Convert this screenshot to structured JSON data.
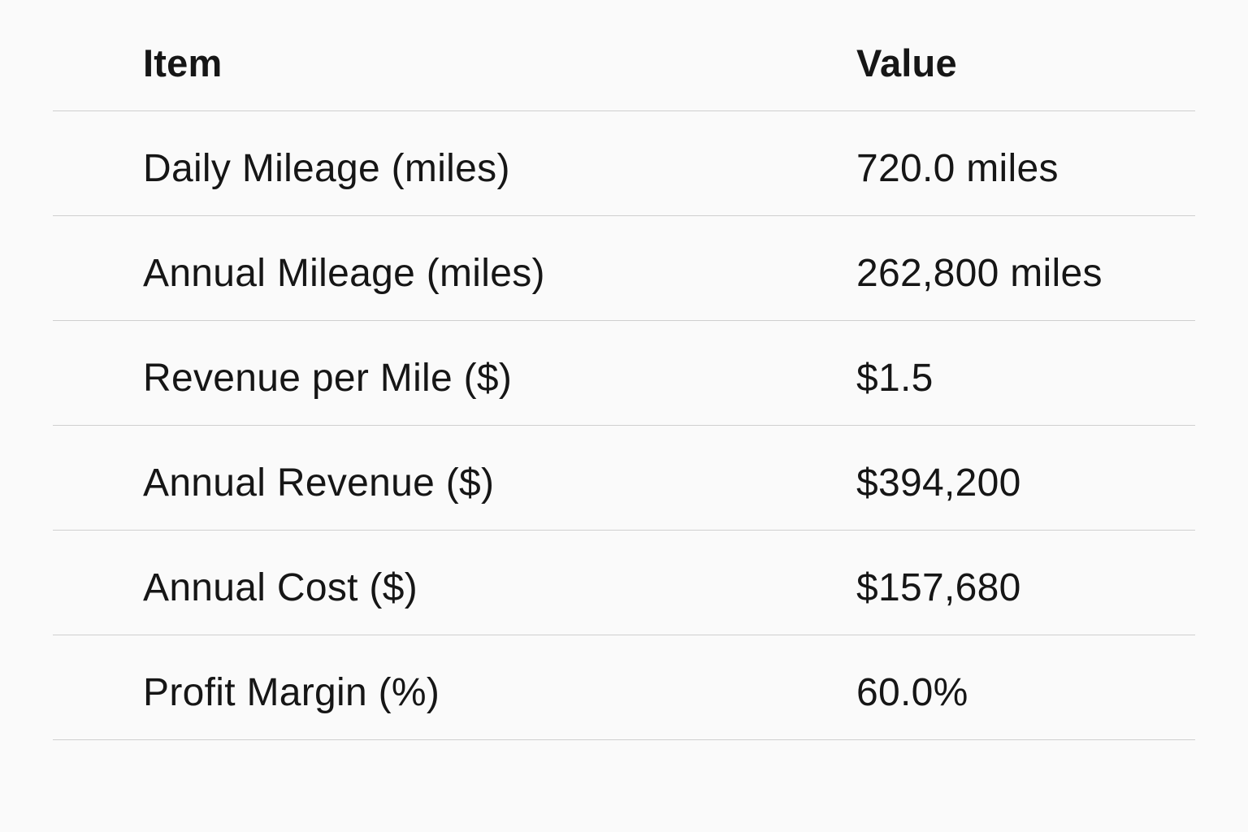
{
  "table": {
    "headers": {
      "item": "Item",
      "value": "Value"
    },
    "rows": [
      {
        "item": "Daily Mileage (miles)",
        "value": "720.0 miles"
      },
      {
        "item": "Annual Mileage (miles)",
        "value": "262,800 miles"
      },
      {
        "item": "Revenue per Mile ($)",
        "value": "$1.5"
      },
      {
        "item": "Annual Revenue ($)",
        "value": "$394,200"
      },
      {
        "item": "Annual Cost ($)",
        "value": "$157,680"
      },
      {
        "item": "Profit Margin (%)",
        "value": "60.0%"
      }
    ]
  }
}
